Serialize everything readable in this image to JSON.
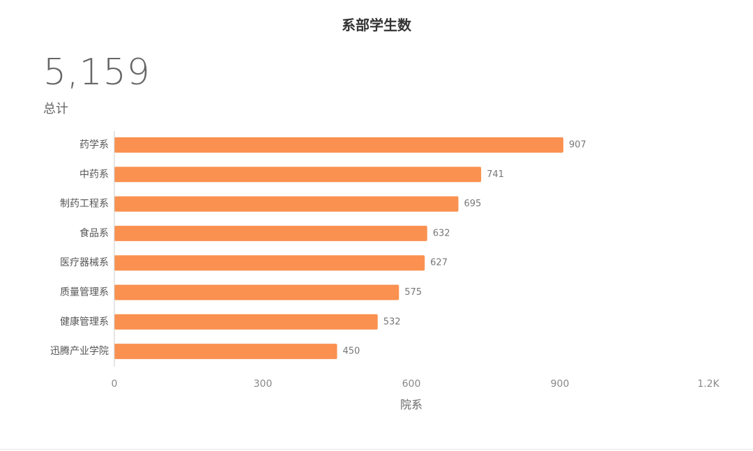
{
  "chart_data": {
    "type": "bar",
    "orientation": "horizontal",
    "title": "系部学生数",
    "kpi": {
      "value": "5,159",
      "label": "总计"
    },
    "categories": [
      "药学系",
      "中药系",
      "制药工程系",
      "食品系",
      "医疗器械系",
      "质量管理系",
      "健康管理系",
      "迅腾产业学院"
    ],
    "values": [
      907,
      741,
      695,
      632,
      627,
      575,
      532,
      450
    ],
    "xticks": [
      0,
      300,
      600,
      900,
      1200
    ],
    "xtick_labels": [
      "0",
      "300",
      "600",
      "900",
      "1.2K"
    ],
    "xlim": [
      0,
      1200
    ],
    "xlabel": "院系",
    "ylabel": "",
    "bar_color": "#fa9150",
    "grid": false,
    "legend": "none"
  }
}
